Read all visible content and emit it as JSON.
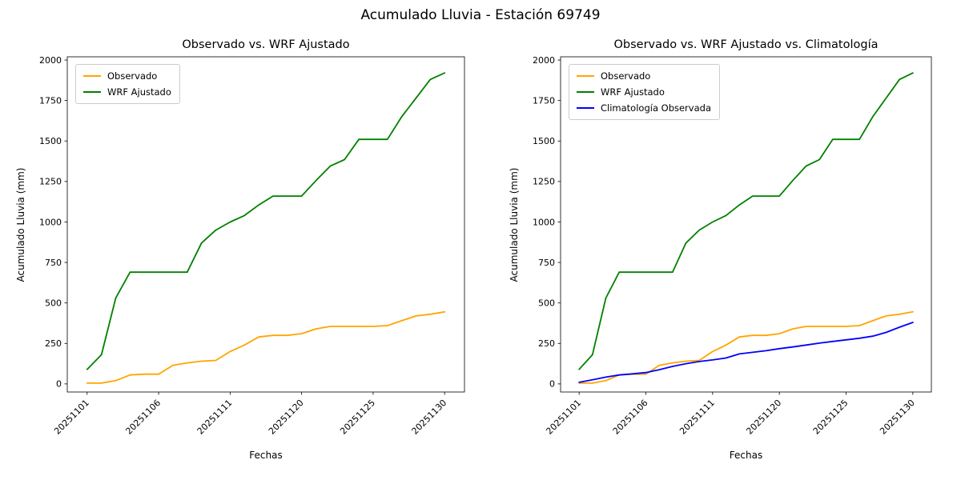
{
  "suptitle": "Acumulado Lluvia - Estación 69749",
  "background_color": "#ffffff",
  "chart_data": [
    {
      "type": "line",
      "title": "Observado vs. WRF Ajustado",
      "xlabel": "Fechas",
      "ylabel": "Acumulado Lluvia (mm)",
      "ylim": [
        0,
        2000
      ],
      "yticks": [
        0,
        250,
        500,
        750,
        1000,
        1250,
        1500,
        1750,
        2000
      ],
      "grid": false,
      "legend_position": "upper-left",
      "x": [
        "20251101",
        "20251102",
        "20251103",
        "20251104",
        "20251105",
        "20251106",
        "20251107",
        "20251108",
        "20251109",
        "20251110",
        "20251111",
        "20251116",
        "20251117",
        "20251118",
        "20251119",
        "20251120",
        "20251121",
        "20251122",
        "20251123",
        "20251124",
        "20251125",
        "20251126",
        "20251127",
        "20251128",
        "20251129",
        "20251130"
      ],
      "xtick_indices": [
        0,
        5,
        10,
        15,
        20,
        25
      ],
      "xtick_labels": [
        "20251101",
        "20251106",
        "20251111",
        "20251120",
        "20251125",
        "20251130"
      ],
      "series": [
        {
          "name": "Observado",
          "color": "#ffa500",
          "values": [
            5,
            5,
            20,
            55,
            60,
            60,
            115,
            130,
            140,
            145,
            200,
            240,
            290,
            300,
            300,
            310,
            340,
            355,
            355,
            355,
            355,
            360,
            390,
            420,
            430,
            445
          ]
        },
        {
          "name": "WRF Ajustado",
          "color": "#008000",
          "values": [
            90,
            180,
            530,
            690,
            690,
            690,
            690,
            690,
            870,
            950,
            1000,
            1040,
            1105,
            1160,
            1160,
            1160,
            1255,
            1345,
            1385,
            1510,
            1510,
            1510,
            1650,
            1765,
            1880,
            1920
          ]
        }
      ]
    },
    {
      "type": "line",
      "title": "Observado vs. WRF Ajustado vs. Climatología",
      "xlabel": "Fechas",
      "ylabel": "Acumulado Lluvia (mm)",
      "ylim": [
        0,
        2000
      ],
      "yticks": [
        0,
        250,
        500,
        750,
        1000,
        1250,
        1500,
        1750,
        2000
      ],
      "grid": false,
      "legend_position": "upper-left",
      "x": [
        "20251101",
        "20251102",
        "20251103",
        "20251104",
        "20251105",
        "20251106",
        "20251107",
        "20251108",
        "20251109",
        "20251110",
        "20251111",
        "20251116",
        "20251117",
        "20251118",
        "20251119",
        "20251120",
        "20251121",
        "20251122",
        "20251123",
        "20251124",
        "20251125",
        "20251126",
        "20251127",
        "20251128",
        "20251129",
        "20251130"
      ],
      "xtick_indices": [
        0,
        5,
        10,
        15,
        20,
        25
      ],
      "xtick_labels": [
        "20251101",
        "20251106",
        "20251111",
        "20251120",
        "20251125",
        "20251130"
      ],
      "series": [
        {
          "name": "Observado",
          "color": "#ffa500",
          "values": [
            5,
            5,
            20,
            55,
            60,
            60,
            115,
            130,
            140,
            145,
            200,
            240,
            290,
            300,
            300,
            310,
            340,
            355,
            355,
            355,
            355,
            360,
            390,
            420,
            430,
            445
          ]
        },
        {
          "name": "WRF Ajustado",
          "color": "#008000",
          "values": [
            90,
            180,
            530,
            690,
            690,
            690,
            690,
            690,
            870,
            950,
            1000,
            1040,
            1105,
            1160,
            1160,
            1160,
            1255,
            1345,
            1385,
            1510,
            1510,
            1510,
            1650,
            1765,
            1880,
            1920
          ]
        },
        {
          "name": "Climatología Observada",
          "color": "#0000ff",
          "values": [
            10,
            25,
            42,
            55,
            62,
            70,
            88,
            108,
            125,
            138,
            148,
            160,
            185,
            195,
            205,
            218,
            228,
            240,
            252,
            262,
            272,
            282,
            295,
            318,
            350,
            380
          ]
        }
      ]
    }
  ]
}
